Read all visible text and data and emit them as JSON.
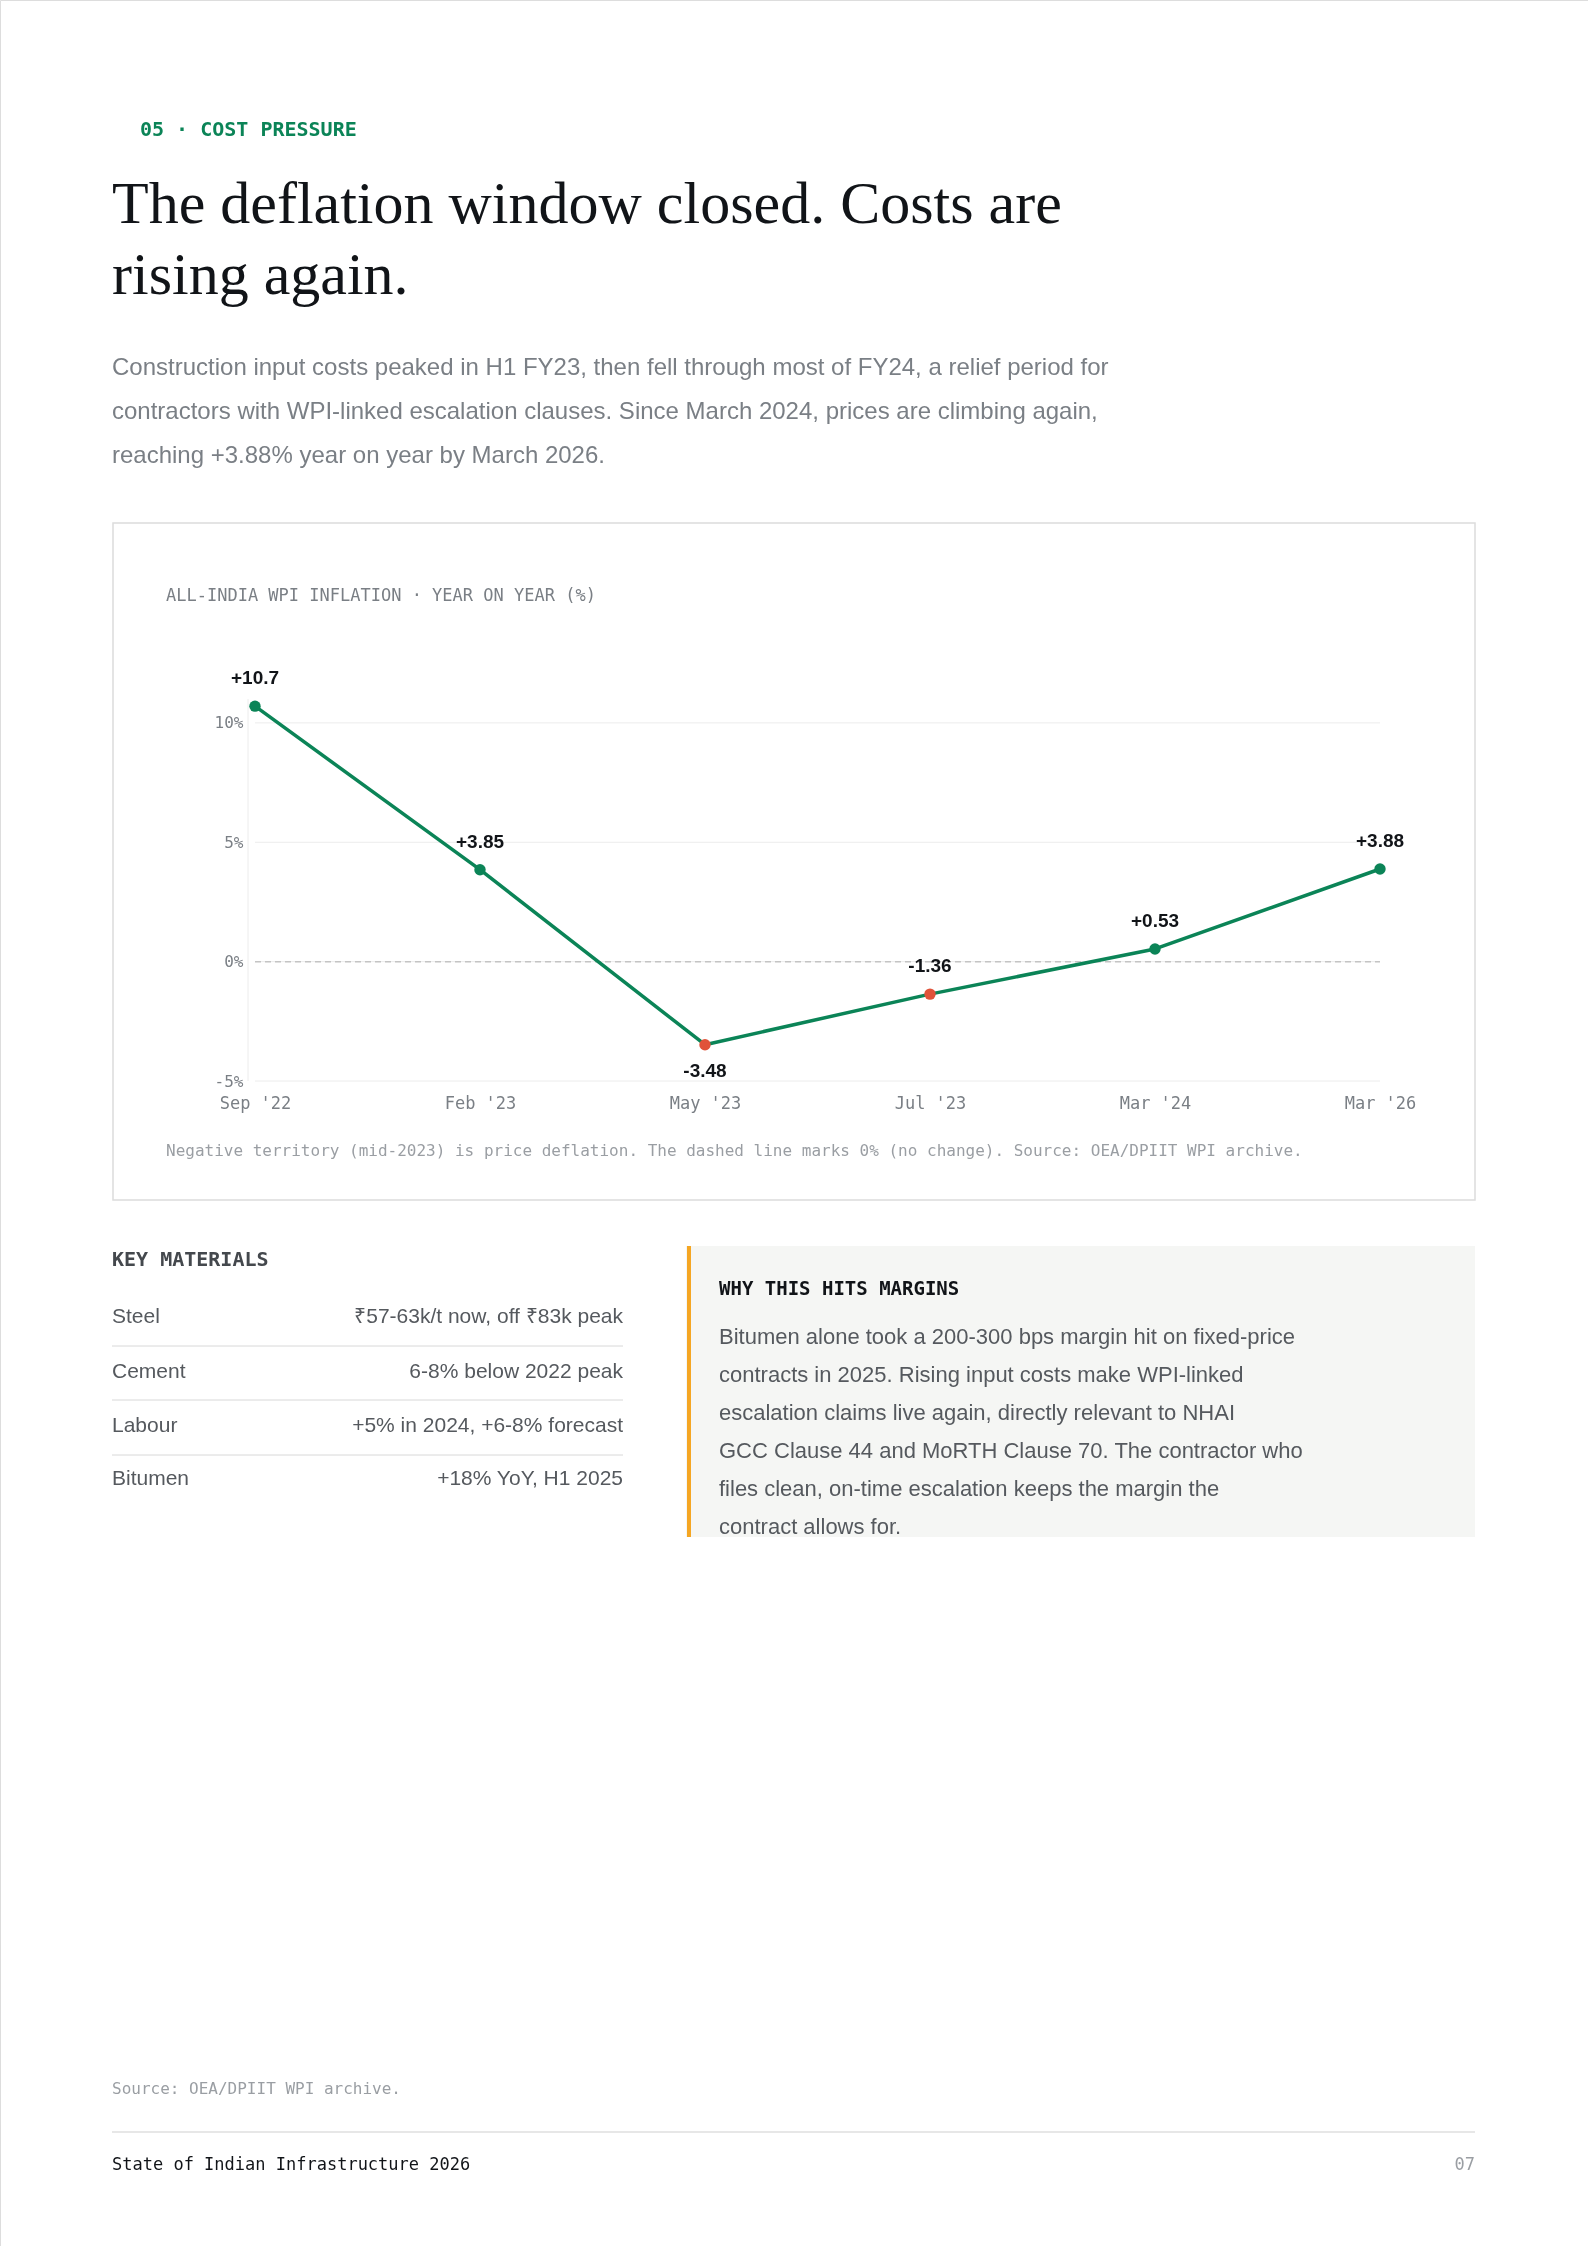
{
  "chart_data": {
    "type": "line",
    "title": "The deflation window closed. Costs are rising again.",
    "subtitle": "Construction input costs peaked in H1 FY23, then fell through most of FY24, a relief period for contractors with WPI-linked escalation clauses. Since March 2024, prices are climbing again, reaching +3.88% year on year by March 2026.",
    "annotations": [
      "05 · COST PRESSURE",
      "ALL-INDIA WPI INFLATION · YEAR ON YEAR (%)",
      "Negative territory (mid-2023) is price deflation. The dashed line marks 0% (no change). Source: OEA/DPIIT WPI archive.",
      "KEY MATERIALS",
      "Steel",
      "₹57-63k/t now, off ₹83k peak",
      "Cement",
      "6-8% below 2022 peak",
      "Labour",
      "+5% in 2024, +6-8% forecast",
      "Bitumen",
      "+18% YoY, H1 2025",
      "WHY THIS HITS MARGINS",
      "Bitumen alone took a 200-300 bps margin hit on fixed-price contracts in 2025. Rising input costs make WPI-linked escalation claims live again, directly relevant to NHAI GCC Clause 44 and MoRTH Clause 70. The contractor who files clean, on-time escalation keeps the margin the contract allows for.",
      "Source: OEA/DPIIT WPI archive.",
      "State of Indian Infrastructure 2026",
      "07"
    ],
    "categories": [
      "Sep '22",
      "Feb '23",
      "May '23",
      "Jul '23",
      "Mar '24",
      "Mar '26"
    ],
    "series": [
      {
        "color": "#0b8457",
        "values": [
          10.7,
          3.85,
          -3.48,
          -1.36,
          0.53,
          3.88
        ],
        "colors": [
          "#0b8457",
          "#0b8457",
          "#e0533a",
          "#e0533a",
          "#0b8457",
          "#0b8457"
        ],
        "value_labels": [
          "+10.7",
          "+3.85",
          "-3.48",
          "-1.36",
          "+0.53",
          "+3.88"
        ]
      }
    ],
    "ylim": [
      -5,
      11
    ],
    "yticks": [
      {
        "value": -5,
        "label": "-5%"
      },
      {
        "value": 0,
        "label": "0%"
      },
      {
        "value": 5,
        "label": "5%"
      },
      {
        "value": 10,
        "label": "10%"
      }
    ],
    "grid": "y",
    "ref_lines": [
      {
        "axis": "y",
        "value": 0,
        "color": "#c4c4c4",
        "line_style": "dashed"
      }
    ],
    "marker": "circle",
    "line_style": "solid"
  }
}
